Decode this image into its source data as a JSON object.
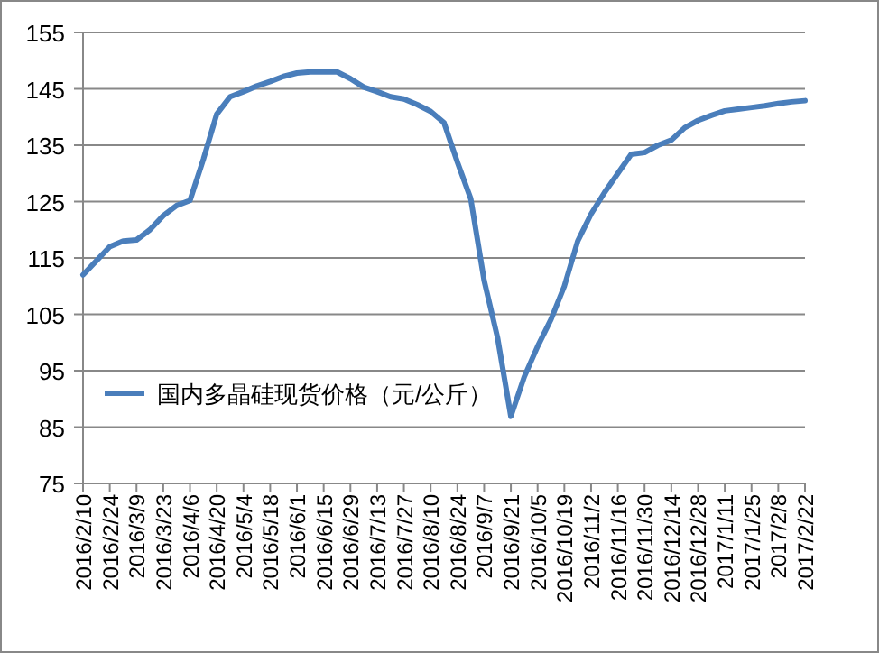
{
  "chart_data": {
    "type": "line",
    "categories": [
      "2016/2/10",
      null,
      "2016/2/24",
      null,
      "2016/3/9",
      null,
      "2016/3/23",
      null,
      "2016/4/6",
      null,
      "2016/4/20",
      null,
      "2016/5/4",
      null,
      "2016/5/18",
      null,
      "2016/6/1",
      null,
      "2016/6/15",
      null,
      "2016/6/29",
      null,
      "2016/7/13",
      null,
      "2016/7/27",
      null,
      "2016/8/10",
      null,
      "2016/8/24",
      null,
      "2016/9/7",
      null,
      "2016/9/21",
      null,
      "2016/10/5",
      null,
      "2016/10/19",
      null,
      "2016/11/2",
      null,
      "2016/11/16",
      null,
      "2016/11/30",
      null,
      "2016/12/14",
      null,
      "2016/12/28",
      null,
      "2017/1/11",
      null,
      "2017/1/25",
      null,
      "2017/2/8",
      null,
      "2017/2/22"
    ],
    "series": [
      {
        "name": "国内多晶硅现货价格（元/公斤）",
        "color": "#4a7ebb",
        "values": [
          112,
          114.5,
          117,
          118,
          118.2,
          120,
          122.5,
          124.3,
          125.2,
          132.5,
          140.5,
          143.6,
          144.5,
          145.5,
          146.3,
          147.2,
          147.8,
          148,
          148,
          148,
          146.8,
          145.3,
          144.5,
          143.6,
          143.2,
          142.2,
          141,
          139,
          132,
          125.5,
          111,
          100.9,
          86.9,
          93.9,
          99.3,
          104.1,
          110,
          118,
          122.8,
          126.6,
          130,
          133.4,
          133.7,
          135,
          135.9,
          138.1,
          139.4,
          140.3,
          141.1,
          141.4,
          141.7,
          142,
          142.4,
          142.7,
          142.9
        ]
      }
    ],
    "ylim": [
      75,
      155
    ],
    "yticks": [
      75,
      85,
      95,
      105,
      115,
      125,
      135,
      145,
      155
    ],
    "grid": "y",
    "legend": "bottom left",
    "marker": "none",
    "line_style": "solid"
  }
}
